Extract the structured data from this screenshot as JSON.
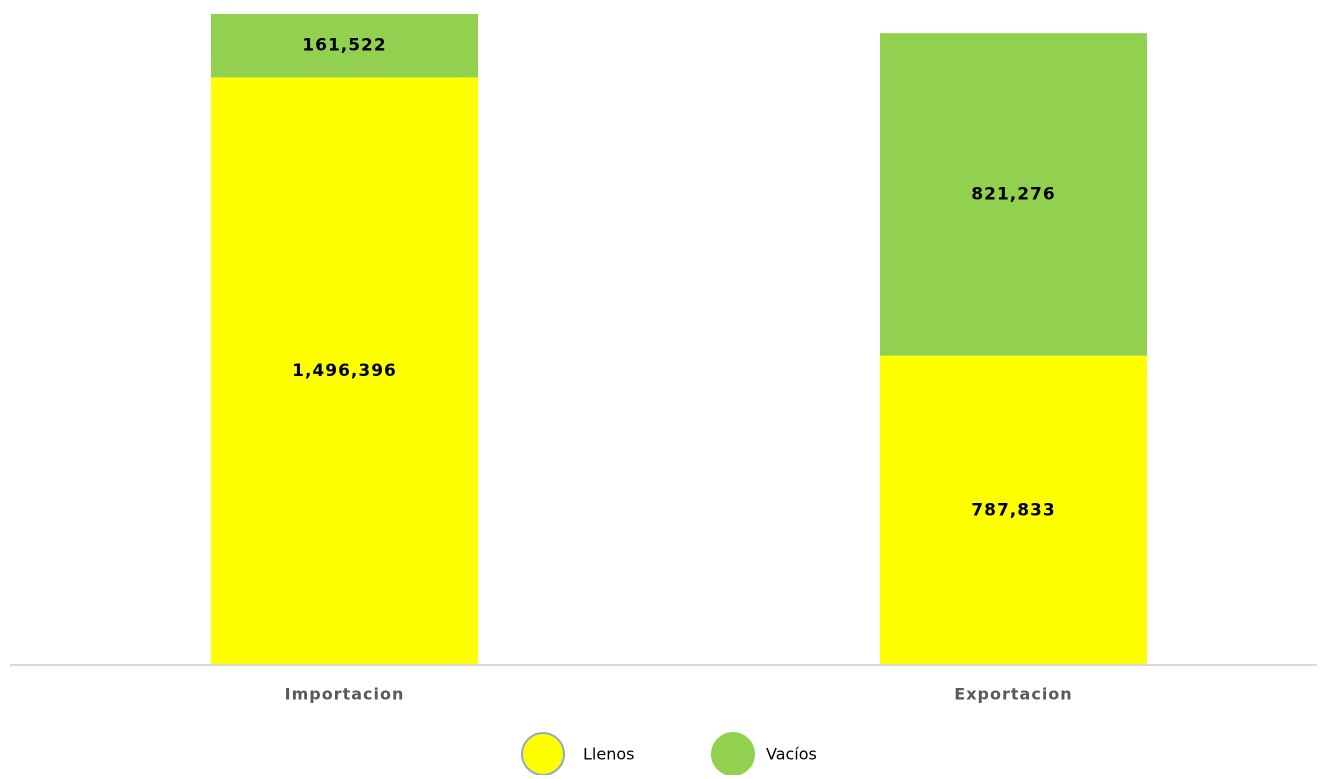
{
  "chart_data": {
    "type": "stacked-bar",
    "categories": [
      "Importacion",
      "Exportacion"
    ],
    "series": [
      {
        "name": "Llenos",
        "color": "#ffff00",
        "values": [
          1496396,
          787833
        ],
        "value_labels": [
          "1,496,396",
          "787,833"
        ]
      },
      {
        "name": "Vacíos",
        "color": "#92d050",
        "values": [
          161522,
          821276
        ],
        "value_labels": [
          "161,522",
          "821,276"
        ]
      }
    ]
  }
}
